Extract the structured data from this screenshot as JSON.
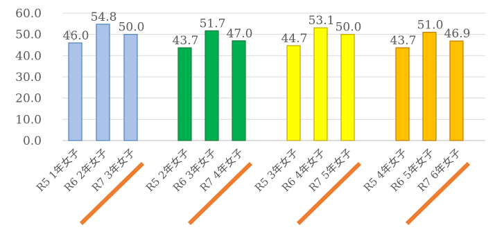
{
  "chart_data": {
    "type": "bar",
    "title": "",
    "xlabel": "",
    "ylabel": "",
    "ylim": [
      0,
      60
    ],
    "ytick_step": 10,
    "ytick_labels": [
      "0.0",
      "10.0",
      "20.0",
      "30.0",
      "40.0",
      "50.0",
      "60.0"
    ],
    "grid": true,
    "legend": "none",
    "groups": [
      {
        "color": "#a9c4e8",
        "border": "#4f81bd",
        "bars": [
          {
            "category": "R5 1年女子",
            "value": 46.0,
            "label": "46.0",
            "underline": false
          },
          {
            "category": "R6 2年女子",
            "value": 54.8,
            "label": "54.8",
            "underline": false
          },
          {
            "category": "R7 3年女子",
            "value": 50.0,
            "label": "50.0",
            "underline": true
          }
        ]
      },
      {
        "color": "#00b050",
        "border": "#1f7a3a",
        "bars": [
          {
            "category": "R5 2年女子",
            "value": 43.7,
            "label": "43.7",
            "underline": false
          },
          {
            "category": "R6 3年女子",
            "value": 51.7,
            "label": "51.7",
            "underline": false
          },
          {
            "category": "R7 4年女子",
            "value": 47.0,
            "label": "47.0",
            "underline": true
          }
        ]
      },
      {
        "color": "#ffff00",
        "border": "#bfa500",
        "bars": [
          {
            "category": "R5 3年女子",
            "value": 44.7,
            "label": "44.7",
            "underline": false
          },
          {
            "category": "R6 4年女子",
            "value": 53.1,
            "label": "53.1",
            "underline": false
          },
          {
            "category": "R7 5年女子",
            "value": 50.0,
            "label": "50.0",
            "underline": true
          }
        ]
      },
      {
        "color": "#ffc000",
        "border": "#c07a00",
        "bars": [
          {
            "category": "R5 4年女子",
            "value": 43.7,
            "label": "43.7",
            "underline": false
          },
          {
            "category": "R6 5年女子",
            "value": 51.0,
            "label": "51.0",
            "underline": false
          },
          {
            "category": "R7 6年女子",
            "value": 46.9,
            "label": "46.9",
            "underline": true
          }
        ]
      }
    ],
    "underline_color": "#ed7d31"
  }
}
